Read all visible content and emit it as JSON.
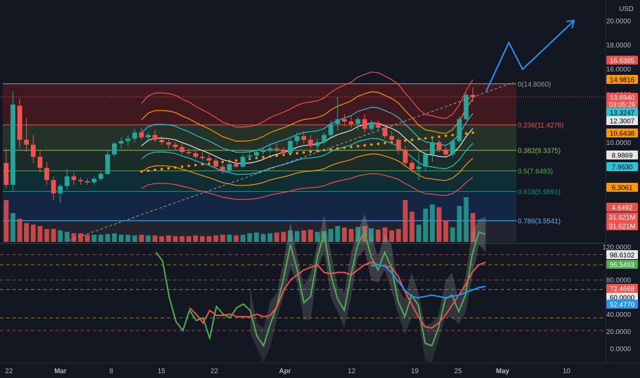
{
  "currency": "USD",
  "main_axis": {
    "ticks": [
      "20.0000",
      "18.0000",
      "16.0000",
      "14.0000",
      "10.0000"
    ]
  },
  "price_tags": [
    {
      "text": "16.6385",
      "bg": "#e8504a",
      "fg": "#ffffff"
    },
    {
      "text": "14.9816",
      "bg": "#ff9800",
      "fg": "#000000"
    },
    {
      "text": "13.6940",
      "bg": "#ef5350",
      "fg": "#ffffff"
    },
    {
      "text": "03:05:26",
      "bg": "#ef5350",
      "fg": "#ffffff"
    },
    {
      "text": "13.3247",
      "bg": "#26c6da",
      "fg": "#000000"
    },
    {
      "text": "12.3007",
      "bg": "#e6e6e6",
      "fg": "#000000"
    },
    {
      "text": "10.6438",
      "bg": "#ff9800",
      "fg": "#000000"
    },
    {
      "text": "8.9869",
      "bg": "#e6e6e6",
      "fg": "#000000"
    },
    {
      "text": "7.9630",
      "bg": "#26c6da",
      "fg": "#000000"
    },
    {
      "text": "6.3061",
      "bg": "#ff9800",
      "fg": "#000000"
    },
    {
      "text": "4.6492",
      "bg": "#e8504a",
      "fg": "#ffffff"
    },
    {
      "text": "31.621M",
      "bg": "#ef5350",
      "fg": "#ffffff"
    },
    {
      "text": "31.621M",
      "bg": "#ef5350",
      "fg": "#ffffff"
    }
  ],
  "fib_levels": [
    {
      "label": "0(14.8060)",
      "value": 14.806,
      "color": "#9e9e9e"
    },
    {
      "label": "0.236(11.4276)",
      "value": 11.4276,
      "color": "#ef5350"
    },
    {
      "label": "0.382(9.3375)",
      "value": 9.3375,
      "color": "#8bc34a"
    },
    {
      "label": "0.5(7.6483)",
      "value": 7.6483,
      "color": "#4caf50"
    },
    {
      "label": "0.618(5.9591)",
      "value": 5.9591,
      "color": "#009688"
    },
    {
      "label": "0.786(3.5541)",
      "value": 3.5541,
      "color": "#64b5f6"
    }
  ],
  "osc_axis": {
    "ticks": [
      "120.0000",
      "80.0000",
      "40.0000",
      "20.0000",
      "0.0000"
    ],
    "tags": [
      {
        "text": "98.6102",
        "bg": "#e6e6e6",
        "fg": "#000000"
      },
      {
        "text": "96.5493",
        "bg": "#4caf50",
        "fg": "#ffffff"
      },
      {
        "text": "72.4668",
        "bg": "#ef5350",
        "fg": "#ffffff"
      },
      {
        "text": "60.0000",
        "bg": "#e6e6e6",
        "fg": "#000000"
      },
      {
        "text": "52.4770",
        "bg": "#2196f3",
        "fg": "#ffffff"
      }
    ]
  },
  "x_labels": [
    "22",
    "Mar",
    "8",
    "15",
    "22",
    "Apr",
    "12",
    "19",
    "25",
    "May",
    "10"
  ],
  "chart_data": [
    {
      "type": "candlestick",
      "ylim": [
        0.8,
        20.8
      ],
      "candles": [
        {
          "o": 8.3,
          "h": 9.5,
          "l": 6.2,
          "c": 6.5
        },
        {
          "o": 6.5,
          "h": 14.2,
          "l": 6.0,
          "c": 13.1
        },
        {
          "o": 13.0,
          "h": 13.6,
          "l": 9.5,
          "c": 10.2
        },
        {
          "o": 10.2,
          "h": 12.0,
          "l": 9.2,
          "c": 9.8
        },
        {
          "o": 9.8,
          "h": 10.6,
          "l": 8.3,
          "c": 8.8
        },
        {
          "o": 8.8,
          "h": 9.4,
          "l": 7.5,
          "c": 7.9
        },
        {
          "o": 7.9,
          "h": 8.4,
          "l": 6.5,
          "c": 6.9
        },
        {
          "o": 6.9,
          "h": 7.2,
          "l": 5.2,
          "c": 5.8
        },
        {
          "o": 5.8,
          "h": 6.6,
          "l": 5.0,
          "c": 6.4
        },
        {
          "o": 6.4,
          "h": 7.8,
          "l": 6.1,
          "c": 7.2
        },
        {
          "o": 7.2,
          "h": 7.5,
          "l": 6.5,
          "c": 6.9
        },
        {
          "o": 6.9,
          "h": 7.1,
          "l": 6.5,
          "c": 6.8
        },
        {
          "o": 6.8,
          "h": 7.0,
          "l": 6.5,
          "c": 6.7
        },
        {
          "o": 6.7,
          "h": 7.2,
          "l": 6.5,
          "c": 7.0
        },
        {
          "o": 7.0,
          "h": 7.6,
          "l": 6.8,
          "c": 7.4
        },
        {
          "o": 7.4,
          "h": 9.3,
          "l": 7.3,
          "c": 9.0
        },
        {
          "o": 9.0,
          "h": 10.0,
          "l": 8.8,
          "c": 9.9
        },
        {
          "o": 9.9,
          "h": 10.4,
          "l": 9.5,
          "c": 10.1
        },
        {
          "o": 10.1,
          "h": 10.6,
          "l": 9.7,
          "c": 10.3
        },
        {
          "o": 10.3,
          "h": 11.1,
          "l": 10.0,
          "c": 10.8
        },
        {
          "o": 10.8,
          "h": 11.2,
          "l": 10.2,
          "c": 10.4
        },
        {
          "o": 10.4,
          "h": 10.8,
          "l": 10.0,
          "c": 10.6
        },
        {
          "o": 10.6,
          "h": 11.0,
          "l": 10.0,
          "c": 10.2
        },
        {
          "o": 10.2,
          "h": 10.5,
          "l": 9.8,
          "c": 10.0
        },
        {
          "o": 10.0,
          "h": 10.2,
          "l": 9.5,
          "c": 9.8
        },
        {
          "o": 9.8,
          "h": 10.0,
          "l": 9.3,
          "c": 9.6
        },
        {
          "o": 9.6,
          "h": 9.8,
          "l": 9.0,
          "c": 9.2
        },
        {
          "o": 9.2,
          "h": 9.5,
          "l": 8.9,
          "c": 9.1
        },
        {
          "o": 9.1,
          "h": 9.4,
          "l": 8.6,
          "c": 8.8
        },
        {
          "o": 8.8,
          "h": 9.2,
          "l": 8.5,
          "c": 8.7
        },
        {
          "o": 8.7,
          "h": 9.1,
          "l": 8.3,
          "c": 8.5
        },
        {
          "o": 8.5,
          "h": 8.7,
          "l": 7.8,
          "c": 8.0
        },
        {
          "o": 8.0,
          "h": 8.2,
          "l": 7.4,
          "c": 7.7
        },
        {
          "o": 7.7,
          "h": 8.4,
          "l": 7.5,
          "c": 8.2
        },
        {
          "o": 8.2,
          "h": 8.6,
          "l": 7.9,
          "c": 8.0
        },
        {
          "o": 8.0,
          "h": 9.0,
          "l": 7.9,
          "c": 8.8
        },
        {
          "o": 8.8,
          "h": 9.3,
          "l": 8.6,
          "c": 8.9
        },
        {
          "o": 8.9,
          "h": 9.4,
          "l": 8.7,
          "c": 9.2
        },
        {
          "o": 9.2,
          "h": 9.6,
          "l": 9.0,
          "c": 9.3
        },
        {
          "o": 9.3,
          "h": 9.8,
          "l": 9.1,
          "c": 9.5
        },
        {
          "o": 9.5,
          "h": 9.9,
          "l": 9.2,
          "c": 9.4
        },
        {
          "o": 9.4,
          "h": 9.6,
          "l": 8.9,
          "c": 9.1
        },
        {
          "o": 9.1,
          "h": 10.4,
          "l": 9.0,
          "c": 10.1
        },
        {
          "o": 10.1,
          "h": 10.8,
          "l": 9.8,
          "c": 10.5
        },
        {
          "o": 10.5,
          "h": 10.9,
          "l": 9.9,
          "c": 10.2
        },
        {
          "o": 10.2,
          "h": 10.6,
          "l": 9.5,
          "c": 9.7
        },
        {
          "o": 9.7,
          "h": 10.3,
          "l": 9.4,
          "c": 10.0
        },
        {
          "o": 10.0,
          "h": 10.8,
          "l": 9.8,
          "c": 10.6
        },
        {
          "o": 10.6,
          "h": 11.8,
          "l": 10.4,
          "c": 11.5
        },
        {
          "o": 11.5,
          "h": 13.7,
          "l": 11.0,
          "c": 11.9
        },
        {
          "o": 11.9,
          "h": 12.3,
          "l": 11.3,
          "c": 11.7
        },
        {
          "o": 11.7,
          "h": 12.2,
          "l": 11.2,
          "c": 11.5
        },
        {
          "o": 11.5,
          "h": 12.1,
          "l": 11.0,
          "c": 11.9
        },
        {
          "o": 11.9,
          "h": 12.3,
          "l": 10.8,
          "c": 11.1
        },
        {
          "o": 11.1,
          "h": 11.8,
          "l": 10.9,
          "c": 11.6
        },
        {
          "o": 11.6,
          "h": 11.8,
          "l": 11.0,
          "c": 11.2
        },
        {
          "o": 11.2,
          "h": 11.4,
          "l": 10.3,
          "c": 10.5
        },
        {
          "o": 10.5,
          "h": 10.9,
          "l": 9.8,
          "c": 10.2
        },
        {
          "o": 10.2,
          "h": 10.4,
          "l": 9.0,
          "c": 9.4
        },
        {
          "o": 9.4,
          "h": 9.7,
          "l": 8.0,
          "c": 8.3
        },
        {
          "o": 8.3,
          "h": 8.5,
          "l": 7.5,
          "c": 7.8
        },
        {
          "o": 7.8,
          "h": 9.4,
          "l": 6.9,
          "c": 8.0
        },
        {
          "o": 8.0,
          "h": 9.3,
          "l": 7.6,
          "c": 9.0
        },
        {
          "o": 9.0,
          "h": 10.5,
          "l": 8.4,
          "c": 10.0
        },
        {
          "o": 10.0,
          "h": 10.2,
          "l": 9.2,
          "c": 9.4
        },
        {
          "o": 9.4,
          "h": 9.7,
          "l": 8.8,
          "c": 9.0
        },
        {
          "o": 9.0,
          "h": 10.3,
          "l": 8.8,
          "c": 10.1
        },
        {
          "o": 10.1,
          "h": 12.1,
          "l": 10.0,
          "c": 11.9
        },
        {
          "o": 11.9,
          "h": 14.1,
          "l": 11.8,
          "c": 13.9
        },
        {
          "o": 13.9,
          "h": 14.5,
          "l": 13.3,
          "c": 13.7
        }
      ],
      "volumes": [
        58,
        40,
        32,
        26,
        24,
        22,
        18,
        18,
        16,
        14,
        12,
        12,
        10,
        10,
        10,
        11,
        12,
        10,
        10,
        9,
        10,
        9,
        9,
        8,
        9,
        8,
        8,
        8,
        9,
        8,
        8,
        9,
        10,
        10,
        9,
        10,
        12,
        13,
        11,
        12,
        13,
        14,
        16,
        15,
        16,
        17,
        14,
        15,
        18,
        22,
        20,
        18,
        21,
        22,
        19,
        17,
        20,
        16,
        18,
        58,
        42,
        24,
        46,
        52,
        48,
        30,
        20,
        50,
        62,
        40
      ],
      "forecast_path": [
        [
          14.2,
          "Apr 30"
        ],
        [
          18.2,
          "May 4"
        ],
        [
          16.0,
          "May 7"
        ],
        [
          20.0,
          "May 12"
        ]
      ]
    },
    {
      "type": "line",
      "ylim": [
        -12,
        127
      ],
      "series": [
        {
          "color": "#4caf50",
          "values": [
            82,
            75,
            46,
            27,
            20,
            36,
            28,
            30,
            14,
            39,
            33,
            30,
            38,
            41,
            36,
            16,
            8,
            25,
            40,
            62,
            88,
            68,
            42,
            47,
            78,
            97,
            64,
            45,
            36,
            64,
            88,
            98,
            78,
            68,
            82,
            70,
            43,
            31,
            48,
            40,
            10,
            8,
            22,
            45,
            48,
            35,
            48,
            80,
            98,
            96
          ]
        },
        {
          "color": "#ef5350",
          "values": [
            null,
            null,
            null,
            null,
            null,
            38,
            33,
            26,
            36,
            32,
            32,
            33,
            31,
            31,
            31,
            33,
            31,
            32,
            39,
            52,
            60,
            64,
            68,
            70,
            72,
            66,
            65,
            66,
            66,
            64,
            68,
            72,
            74,
            72,
            71,
            70,
            63,
            51,
            41,
            31,
            23,
            22,
            26,
            32,
            40,
            48,
            56,
            66,
            72,
            74
          ]
        },
        {
          "color": "#2196f3",
          "values": [
            null,
            null,
            null,
            null,
            null,
            null,
            null,
            null,
            null,
            null,
            null,
            null,
            null,
            null,
            null,
            null,
            null,
            null,
            null,
            null,
            null,
            null,
            null,
            null,
            null,
            null,
            null,
            null,
            null,
            null,
            null,
            null,
            71,
            72,
            71,
            66,
            59,
            52,
            47,
            46,
            47,
            48,
            47,
            46,
            47,
            48,
            50,
            52,
            54,
            55
          ]
        }
      ]
    }
  ]
}
